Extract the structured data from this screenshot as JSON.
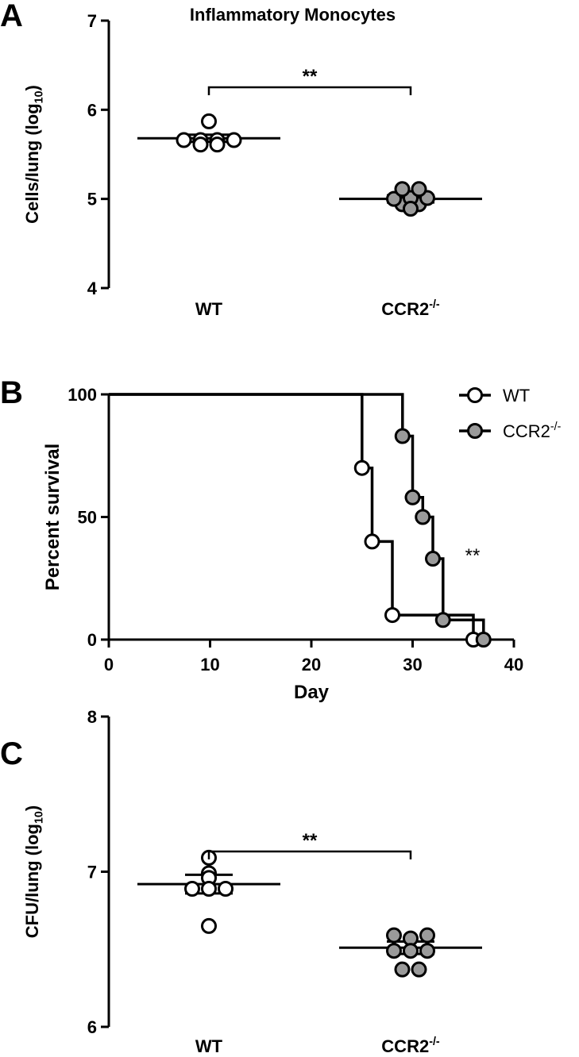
{
  "colors": {
    "axis": "#000000",
    "wt_fill": "#ffffff",
    "ko_fill": "#9a9a9a",
    "stroke": "#000000"
  },
  "panels": [
    {
      "label": "A"
    },
    {
      "label": "B"
    },
    {
      "label": "C"
    }
  ],
  "chart_data": [
    {
      "type": "scatter",
      "title": "Inflammatory Monocytes",
      "ylabel": {
        "main": "Cells/lung (log",
        "sub": "10",
        "end": ")"
      },
      "ylim": [
        4,
        7
      ],
      "yticks": [
        "4",
        "5",
        "6",
        "7"
      ],
      "categories": [
        {
          "main": "WT",
          "sup": ""
        },
        {
          "main": "CCR2",
          "sup": "-/-"
        }
      ],
      "series": [
        {
          "values": [
            5.66,
            5.66,
            5.61,
            5.66,
            5.61,
            5.66,
            5.87
          ],
          "mean": 5.68,
          "sem": 0.04,
          "fill": "white"
        },
        {
          "values": [
            4.94,
            5.0,
            4.94,
            5.01,
            4.89,
            5.01,
            5.11,
            5.11
          ],
          "mean": 5.0,
          "sem": 0.04,
          "fill": "grey"
        }
      ],
      "significance": "**"
    },
    {
      "type": "line",
      "subtype": "survival-step",
      "xlabel": "Day",
      "ylabel": "Percent survival",
      "xlim": [
        0,
        40
      ],
      "ylim": [
        0,
        100
      ],
      "xticks": [
        "0",
        "10",
        "20",
        "30",
        "40"
      ],
      "yticks": [
        "0",
        "50",
        "100"
      ],
      "legend_position": "top-right",
      "series": [
        {
          "name": "WT",
          "name_sup": "",
          "fill": "white",
          "steps": [
            [
              0,
              100
            ],
            [
              25,
              100
            ],
            [
              25,
              70
            ],
            [
              26,
              70
            ],
            [
              26,
              40
            ],
            [
              28,
              40
            ],
            [
              28,
              10
            ],
            [
              36,
              10
            ],
            [
              36,
              0
            ],
            [
              37,
              0
            ]
          ],
          "markers": [
            [
              25,
              70
            ],
            [
              26,
              40
            ],
            [
              28,
              10
            ],
            [
              36,
              0
            ]
          ]
        },
        {
          "name": "CCR2",
          "name_sup": "-/-",
          "fill": "grey",
          "steps": [
            [
              0,
              100
            ],
            [
              29,
              100
            ],
            [
              29,
              83
            ],
            [
              30,
              83
            ],
            [
              30,
              58
            ],
            [
              31,
              58
            ],
            [
              31,
              50
            ],
            [
              32,
              50
            ],
            [
              32,
              33
            ],
            [
              33,
              33
            ],
            [
              33,
              8
            ],
            [
              37,
              8
            ],
            [
              37,
              0
            ]
          ],
          "markers": [
            [
              29,
              83
            ],
            [
              30,
              58
            ],
            [
              31,
              50
            ],
            [
              32,
              33
            ],
            [
              33,
              8
            ],
            [
              37,
              0
            ]
          ]
        }
      ],
      "significance": "**"
    },
    {
      "type": "scatter",
      "title": "",
      "ylabel": {
        "main": "CFU/lung (log",
        "sub": "10",
        "end": ")"
      },
      "ylim": [
        6,
        8
      ],
      "yticks": [
        "6",
        "7",
        "8"
      ],
      "categories": [
        {
          "main": "WT",
          "sup": ""
        },
        {
          "main": "CCR2",
          "sup": "-/-"
        }
      ],
      "series": [
        {
          "values": [
            6.99,
            6.96,
            6.89,
            6.89,
            6.89,
            7.09,
            6.65
          ],
          "mean": 6.92,
          "sem": 0.06,
          "fill": "white"
        },
        {
          "values": [
            6.59,
            6.57,
            6.59,
            6.49,
            6.49,
            6.37,
            6.37,
            6.49
          ],
          "mean": 6.51,
          "sem": 0.04,
          "fill": "grey"
        }
      ],
      "significance": "**"
    }
  ]
}
